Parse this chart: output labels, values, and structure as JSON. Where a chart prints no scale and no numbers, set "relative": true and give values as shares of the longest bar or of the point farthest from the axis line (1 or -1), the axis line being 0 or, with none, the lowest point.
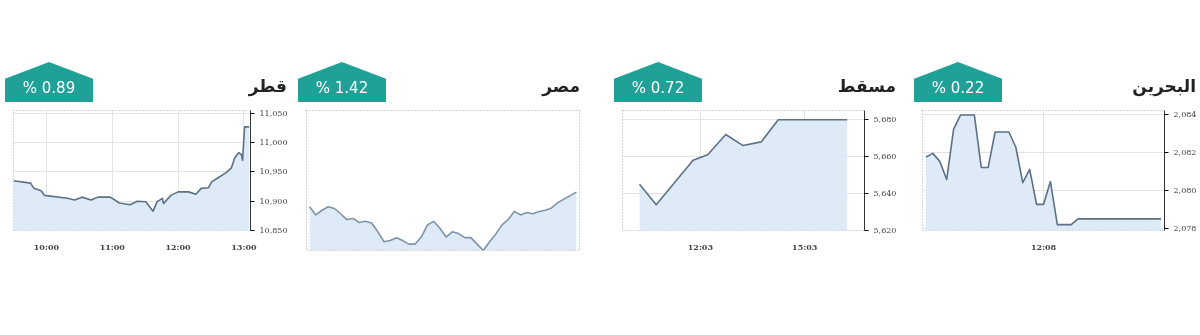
{
  "chart_data": [
    {
      "type": "area",
      "title": "قطر",
      "subtitle": "% 0.89",
      "color": "#5b7188",
      "x": [
        9.5,
        9.76,
        9.81,
        9.92,
        9.97,
        10.32,
        10.43,
        10.54,
        10.68,
        10.78,
        10.97,
        11.11,
        11.27,
        11.38,
        11.51,
        11.62,
        11.68,
        11.76,
        11.78,
        11.89,
        12.0,
        12.16,
        12.27,
        12.35,
        12.46,
        12.51,
        12.62,
        12.73,
        12.81,
        12.86,
        12.92,
        12.96,
        12.98,
        13.01,
        13.08
      ],
      "values": [
        10935,
        10931,
        10922,
        10918,
        10910,
        10905,
        10902,
        10907,
        10902,
        10907,
        10907,
        10897,
        10894,
        10900,
        10899,
        10883,
        10899,
        10905,
        10896,
        10910,
        10916,
        10916,
        10912,
        10922,
        10923,
        10933,
        10941,
        10949,
        10957,
        10974,
        10983,
        10980,
        10970,
        11027,
        11027
      ],
      "xlim": [
        9.5,
        13.1
      ],
      "ylim": [
        10850,
        11055
      ],
      "xticks": [
        {
          "value": 10,
          "label": "10:00"
        },
        {
          "value": 11,
          "label": "11:00"
        },
        {
          "value": 12,
          "label": "12:00"
        },
        {
          "value": 13,
          "label": "13:00"
        }
      ],
      "yticks": [
        {
          "value": 10850,
          "label": "10,850"
        },
        {
          "value": 10900,
          "label": "10,900"
        },
        {
          "value": 10950,
          "label": "10,950"
        },
        {
          "value": 11000,
          "label": "11,000"
        },
        {
          "value": 11050,
          "label": "11,050"
        }
      ],
      "grid": true
    },
    {
      "type": "area",
      "title": "مصر",
      "subtitle": "% 1.42",
      "color": "#7f93a8",
      "relative": true,
      "categories": [
        null,
        null,
        null,
        null,
        null,
        null,
        null,
        null,
        null,
        null,
        null,
        null,
        null,
        null,
        null,
        null,
        null,
        null,
        null,
        null,
        null,
        null,
        null,
        null,
        null,
        null,
        null,
        null,
        null,
        null,
        null,
        null,
        null,
        null,
        null,
        null,
        null,
        null,
        null,
        null,
        null,
        null,
        null,
        null
      ],
      "values": [
        0.75,
        0.61,
        0.69,
        0.75,
        0.72,
        0.63,
        0.53,
        0.55,
        0.48,
        0.5,
        0.47,
        0.32,
        0.15,
        0.17,
        0.22,
        0.17,
        0.11,
        0.11,
        0.23,
        0.44,
        0.5,
        0.38,
        0.23,
        0.32,
        0.29,
        0.22,
        0.22,
        0.11,
        0,
        0.15,
        0.28,
        0.44,
        0.53,
        0.67,
        0.61,
        0.65,
        0.63,
        0.67,
        0.69,
        0.73,
        0.82,
        0.88,
        0.94,
        1.0
      ]
    },
    {
      "type": "area",
      "title": "مسقط",
      "subtitle": "% 0.72",
      "color": "#5b7188",
      "x": [
        10.3,
        10.78,
        11.22,
        11.84,
        12.26,
        12.78,
        13.28,
        13.8,
        14.29,
        16.27
      ],
      "values": [
        5645,
        5634,
        5644,
        5658,
        5661,
        5672,
        5666,
        5668,
        5680,
        5680
      ],
      "xlim": [
        9.81,
        16.77
      ],
      "ylim": [
        5620,
        5685
      ],
      "xticks": [
        {
          "value": 12.05,
          "label": "12:03"
        },
        {
          "value": 15.05,
          "label": "15:03"
        }
      ],
      "yticks": [
        {
          "value": 5620,
          "label": "5,620"
        },
        {
          "value": 5640,
          "label": "5,640"
        },
        {
          "value": 5660,
          "label": "5,660"
        },
        {
          "value": 5680,
          "label": "5,680"
        }
      ],
      "grid": true
    },
    {
      "type": "area",
      "title": "البحرين",
      "subtitle": "% 0.22",
      "color": "#5b7188",
      "categories": [
        null,
        null,
        null,
        null,
        null,
        null,
        null,
        null,
        null,
        null,
        null,
        null,
        null,
        null,
        null,
        null,
        null,
        "12:08",
        null,
        null,
        null,
        null,
        null,
        null,
        null,
        null,
        null,
        null,
        null,
        null,
        null,
        null,
        null,
        null,
        null
      ],
      "values": [
        2081.76,
        2081.95,
        2081.53,
        2080.58,
        2083.22,
        2083.96,
        2083.96,
        2083.96,
        2081.21,
        2081.21,
        2083.07,
        2083.07,
        2083.07,
        2082.27,
        2080.41,
        2081.11,
        2079.27,
        2079.27,
        2080.47,
        2078.21,
        2078.21,
        2078.21,
        2078.51,
        2078.51,
        2078.51,
        2078.51,
        2078.51,
        2078.51,
        2078.51,
        2078.51,
        2078.51,
        2078.51,
        2078.51,
        2078.51,
        2078.51
      ],
      "ylim": [
        2077.9,
        2084.2
      ],
      "yticks": [
        {
          "value": 2078,
          "label": "2,078"
        },
        {
          "value": 2080,
          "label": "2,080"
        },
        {
          "value": 2082,
          "label": "2,082"
        },
        {
          "value": 2084,
          "label": "2,084"
        }
      ],
      "grid": true
    }
  ]
}
